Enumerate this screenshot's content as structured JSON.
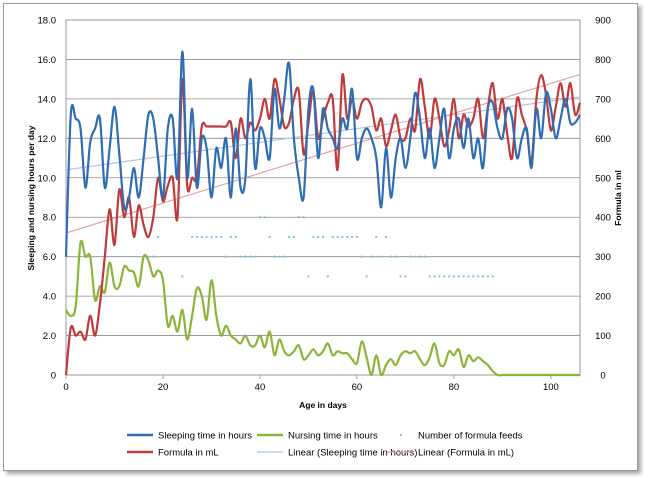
{
  "chart_data": {
    "type": "line",
    "xlabel": "Age in days",
    "ylabel_left": "Sleeping and nursing hours per day",
    "ylabel_right": "Formula in ml",
    "xlim": [
      0,
      106
    ],
    "ylim_left": [
      0,
      18
    ],
    "ylim_right": [
      0,
      900
    ],
    "x_ticks": [
      "0",
      "20",
      "40",
      "60",
      "80",
      "100"
    ],
    "y_ticks_left": [
      "0",
      "2.0",
      "4.0",
      "6.0",
      "8.0",
      "10.0",
      "12.0",
      "14.0",
      "16.0",
      "18.0"
    ],
    "y_ticks_right": [
      "0",
      "100",
      "200",
      "300",
      "400",
      "500",
      "600",
      "700",
      "800",
      "900"
    ],
    "grid": "horizontal",
    "legend_position": "bottom",
    "series": [
      {
        "name": "Sleeping time in hours",
        "axis": "left",
        "color": "#2e6db4",
        "style": "line",
        "x": [
          0,
          1,
          2,
          3,
          4,
          5,
          6,
          7,
          8,
          9,
          10,
          11,
          12,
          13,
          14,
          15,
          16,
          17,
          18,
          19,
          20,
          21,
          22,
          23,
          24,
          25,
          26,
          27,
          28,
          29,
          30,
          31,
          32,
          33,
          34,
          35,
          36,
          37,
          38,
          39,
          40,
          41,
          42,
          43,
          44,
          45,
          46,
          47,
          48,
          49,
          50,
          51,
          52,
          53,
          54,
          55,
          56,
          57,
          58,
          59,
          60,
          61,
          62,
          63,
          64,
          65,
          66,
          67,
          68,
          69,
          70,
          71,
          72,
          73,
          74,
          75,
          76,
          77,
          78,
          79,
          80,
          81,
          82,
          83,
          84,
          85,
          86,
          87,
          88,
          89,
          90,
          91,
          92,
          93,
          94,
          95,
          96,
          97,
          98,
          99,
          100,
          101,
          102,
          103,
          104,
          105,
          106
        ],
        "values": [
          6.0,
          13.2,
          13.0,
          12.5,
          9.5,
          11.8,
          12.5,
          13.0,
          9.5,
          11.5,
          13.6,
          11.2,
          8.5,
          9.0,
          10.5,
          9.0,
          11.0,
          13.2,
          13.0,
          11.0,
          9.0,
          12.5,
          13.0,
          10.0,
          16.4,
          10.0,
          13.5,
          9.5,
          12.0,
          11.5,
          9.0,
          11.5,
          10.5,
          12.0,
          9.0,
          12.5,
          9.5,
          10.0,
          15.0,
          10.5,
          12.5,
          12.0,
          11.0,
          14.5,
          12.5,
          14.0,
          15.8,
          12.0,
          10.0,
          9.0,
          13.5,
          14.5,
          11.0,
          13.5,
          12.5,
          12.0,
          11.5,
          13.0,
          12.5,
          14.5,
          11.0,
          12.0,
          12.5,
          12.0,
          11.0,
          8.5,
          11.5,
          9.0,
          11.0,
          12.0,
          10.5,
          12.0,
          14.3,
          13.0,
          11.0,
          12.5,
          10.5,
          12.0,
          13.5,
          11.0,
          12.5,
          13.0,
          11.5,
          13.0,
          11.0,
          12.0,
          10.5,
          13.5,
          13.8,
          12.5,
          12.0,
          13.5,
          13.0,
          11.0,
          12.0,
          12.5,
          10.5,
          13.5,
          12.0,
          14.3,
          13.5,
          12.0,
          13.0,
          14.0,
          12.8,
          12.8,
          13.2
        ]
      },
      {
        "name": "Nursing time in hours",
        "axis": "left",
        "color": "#8db33a",
        "style": "line",
        "x": [
          0,
          1,
          2,
          3,
          4,
          5,
          6,
          7,
          8,
          9,
          10,
          11,
          12,
          13,
          14,
          15,
          16,
          17,
          18,
          19,
          20,
          21,
          22,
          23,
          24,
          25,
          26,
          27,
          28,
          29,
          30,
          31,
          32,
          33,
          34,
          35,
          36,
          37,
          38,
          39,
          40,
          41,
          42,
          43,
          44,
          45,
          46,
          47,
          48,
          49,
          50,
          51,
          52,
          53,
          54,
          55,
          56,
          57,
          58,
          59,
          60,
          61,
          62,
          63,
          64,
          65,
          66,
          67,
          68,
          69,
          70,
          71,
          72,
          73,
          74,
          75,
          76,
          77,
          78,
          79,
          80,
          81,
          82,
          83,
          84,
          85,
          86,
          87,
          88,
          89,
          90,
          95,
          100,
          106
        ],
        "values": [
          3.3,
          3.0,
          3.5,
          6.7,
          6.0,
          6.0,
          3.8,
          4.5,
          4.2,
          5.7,
          4.5,
          4.5,
          5.5,
          5.3,
          5.2,
          4.5,
          6.0,
          5.8,
          5.0,
          5.3,
          4.8,
          2.5,
          3.0,
          2.2,
          3.3,
          1.8,
          3.0,
          4.4,
          4.0,
          2.8,
          4.8,
          3.0,
          2.0,
          2.5,
          2.0,
          1.8,
          1.6,
          2.0,
          1.5,
          1.5,
          2.0,
          1.4,
          2.2,
          1.0,
          1.8,
          1.2,
          1.0,
          1.2,
          1.5,
          0.8,
          1.0,
          1.3,
          1.0,
          1.2,
          1.6,
          1.0,
          1.2,
          1.1,
          1.1,
          0.8,
          0.6,
          1.7,
          0.9,
          0.0,
          1.0,
          0.0,
          0.5,
          0.8,
          0.5,
          1.0,
          1.2,
          1.1,
          1.2,
          0.8,
          0.5,
          0.9,
          1.6,
          0.6,
          0.5,
          1.2,
          1.0,
          1.3,
          0.4,
          1.0,
          0.7,
          0.9,
          0.7,
          0.5,
          0.2,
          0.0,
          0.0,
          0.0,
          0.0,
          0.0
        ]
      },
      {
        "name": "Number of formula feeds",
        "axis": "left",
        "color": "#7fc6d8",
        "style": "dots",
        "x": [
          17,
          18,
          19,
          24,
          26,
          27,
          28,
          29,
          30,
          31,
          32,
          33,
          34,
          35,
          36,
          37,
          38,
          39,
          40,
          41,
          42,
          43,
          44,
          45,
          46,
          47,
          48,
          49,
          50,
          51,
          52,
          53,
          54,
          55,
          56,
          57,
          58,
          59,
          60,
          61,
          62,
          63,
          64,
          65,
          66,
          67,
          68,
          69,
          70,
          71,
          72,
          73,
          74,
          75,
          76,
          77,
          78,
          79,
          80,
          81,
          82,
          83,
          84,
          85,
          86,
          87,
          88
        ],
        "values": [
          6,
          6,
          7,
          5,
          7,
          7,
          7,
          7,
          7,
          7,
          7,
          6,
          7,
          7,
          6,
          6,
          6,
          6,
          8,
          8,
          7,
          6,
          6,
          6,
          7,
          7,
          8,
          8,
          5,
          7,
          7,
          7,
          5,
          7,
          7,
          7,
          7,
          7,
          7,
          6,
          5,
          6,
          7,
          6,
          7,
          6,
          6,
          5,
          5,
          6,
          6,
          6,
          6,
          5,
          5,
          5,
          5,
          5,
          5,
          5,
          5,
          5,
          5,
          5,
          5,
          5,
          5
        ]
      },
      {
        "name": "Formula in mL",
        "axis": "right",
        "color": "#c0393b",
        "style": "line",
        "x": [
          0,
          1,
          2,
          3,
          4,
          5,
          6,
          7,
          8,
          9,
          10,
          11,
          12,
          13,
          14,
          15,
          16,
          17,
          18,
          19,
          20,
          21,
          22,
          23,
          24,
          25,
          26,
          27,
          28,
          29,
          30,
          31,
          32,
          33,
          34,
          35,
          36,
          37,
          38,
          39,
          40,
          41,
          42,
          43,
          44,
          45,
          46,
          47,
          48,
          49,
          50,
          51,
          52,
          53,
          54,
          55,
          56,
          57,
          58,
          59,
          60,
          61,
          62,
          63,
          64,
          65,
          66,
          67,
          68,
          69,
          70,
          71,
          72,
          73,
          74,
          75,
          76,
          77,
          78,
          79,
          80,
          81,
          82,
          83,
          84,
          85,
          86,
          87,
          88,
          89,
          90,
          91,
          92,
          93,
          94,
          95,
          96,
          97,
          98,
          99,
          100,
          101,
          102,
          103,
          104,
          105,
          106
        ],
        "values": [
          0,
          120,
          100,
          110,
          90,
          150,
          100,
          180,
          300,
          420,
          330,
          470,
          400,
          450,
          350,
          430,
          380,
          350,
          400,
          500,
          440,
          480,
          500,
          400,
          750,
          480,
          500,
          500,
          630,
          630,
          630,
          630,
          630,
          630,
          640,
          550,
          650,
          600,
          640,
          620,
          650,
          700,
          650,
          750,
          700,
          630,
          640,
          700,
          720,
          560,
          640,
          720,
          600,
          650,
          690,
          700,
          520,
          760,
          650,
          700,
          650,
          690,
          700,
          680,
          620,
          650,
          580,
          620,
          660,
          600,
          600,
          650,
          620,
          750,
          680,
          600,
          700,
          650,
          580,
          620,
          700,
          600,
          660,
          630,
          650,
          700,
          600,
          680,
          740,
          650,
          700,
          610,
          550,
          700,
          660,
          620,
          540,
          700,
          760,
          710,
          620,
          680,
          740,
          680,
          740,
          660,
          690
        ]
      }
    ],
    "trendlines": [
      {
        "name": "Linear (Sleeping time in hours)",
        "axis": "left",
        "color": "#a9c8ea",
        "from": [
          0,
          10.4
        ],
        "to": [
          106,
          14.1
        ]
      },
      {
        "name": "Linear (Formula in mL)",
        "axis": "right",
        "color": "#e3a3a6",
        "from": [
          0,
          360
        ],
        "to": [
          106,
          762
        ]
      }
    ],
    "legend": [
      "Sleeping time in hours",
      "Nursing time in hours",
      "Number of formula feeds",
      "Formula in mL",
      "Linear (Sleeping time in hours)",
      "Linear (Formula in mL)"
    ]
  }
}
